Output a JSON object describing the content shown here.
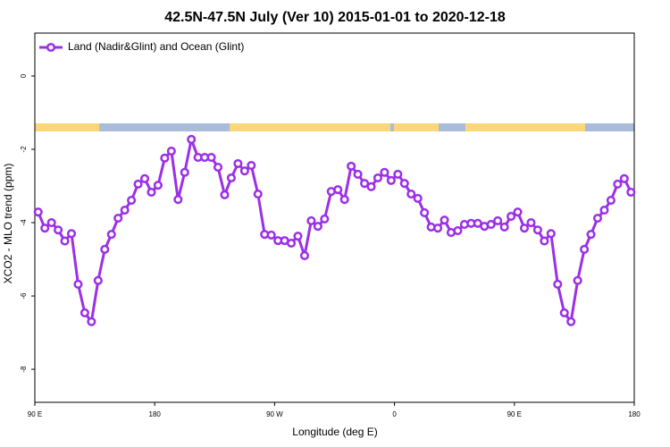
{
  "chart_data": {
    "type": "line",
    "title": "42.5N-47.5N July (Ver 10)   2015-01-01 to 2020-12-18",
    "x_label": "Longitude (deg E)",
    "y_label": "XCO2 - MLO trend (ppm)",
    "legend": "top-left",
    "xlim": [
      90,
      540
    ],
    "ylim": [
      -8.9,
      1.17
    ],
    "xticks": [
      {
        "value": 90,
        "label": "90 E"
      },
      180,
      {
        "value": 270,
        "label": "90 W"
      },
      {
        "value": 360,
        "label": "0"
      },
      {
        "value": 450,
        "label": "90 E"
      },
      {
        "value": 540,
        "label": "180"
      }
    ],
    "yticks": [
      0,
      -2,
      -4,
      -6,
      -8
    ],
    "x": [
      92.5,
      97.5,
      102.5,
      107.5,
      112.5,
      117.5,
      122.5,
      127.5,
      132.5,
      137.5,
      142.5,
      147.5,
      152.5,
      157.5,
      162.5,
      167.5,
      172.5,
      177.5,
      182.5,
      187.5,
      192.5,
      197.5,
      202.5,
      207.5,
      212.5,
      217.5,
      222.5,
      227.5,
      232.5,
      237.5,
      242.5,
      247.5,
      252.5,
      257.5,
      262.5,
      267.5,
      272.5,
      277.5,
      282.5,
      287.5,
      292.5,
      297.5,
      302.5,
      307.5,
      312.5,
      317.5,
      322.5,
      327.5,
      332.5,
      337.5,
      342.5,
      347.5,
      352.5,
      357.5,
      362.5,
      367.5,
      372.5,
      377.5,
      382.5,
      387.5,
      392.5,
      397.5,
      402.5,
      407.5,
      412.5,
      417.5,
      422.5,
      427.5,
      432.5,
      437.5,
      442.5,
      447.5,
      452.5,
      457.5,
      462.5,
      467.5,
      472.5,
      477.5,
      482.5,
      487.5,
      492.5,
      497.5,
      502.5,
      507.5,
      512.5,
      517.5,
      522.5,
      527.5,
      532.5,
      537.5
    ],
    "series": [
      {
        "name": "Land (Nadir&Glint) and Ocean (Glint)",
        "color": "#9b30e6",
        "values": [
          -3.71,
          -4.15,
          -4.0,
          -4.2,
          -4.5,
          -4.3,
          -5.68,
          -6.46,
          -6.7,
          -5.58,
          -4.73,
          -4.32,
          -3.88,
          -3.66,
          -3.39,
          -2.95,
          -2.8,
          -3.17,
          -2.98,
          -2.24,
          -2.05,
          -3.37,
          -2.63,
          -1.73,
          -2.22,
          -2.22,
          -2.22,
          -2.49,
          -3.24,
          -2.78,
          -2.39,
          -2.59,
          -2.44,
          -3.22,
          -4.32,
          -4.34,
          -4.49,
          -4.49,
          -4.56,
          -4.37,
          -4.9,
          -3.95,
          -4.1,
          -3.9,
          -3.15,
          -3.1,
          -3.37,
          -2.46,
          -2.68,
          -2.93,
          -3.02,
          -2.78,
          -2.63,
          -2.85,
          -2.68,
          -2.93,
          -3.22,
          -3.34,
          -3.73,
          -4.12,
          -4.15,
          -3.93,
          -4.27,
          -4.22,
          -4.05,
          -4.02,
          -4.02,
          -4.1,
          -4.05,
          -3.95,
          -4.12,
          -3.83,
          -3.71,
          -4.15,
          -4.0,
          -4.2,
          -4.5,
          -4.3,
          -5.68,
          -6.46,
          -6.7,
          -5.58,
          -4.73,
          -4.32,
          -3.88,
          -3.66,
          -3.39,
          -2.95,
          -2.8,
          -3.17
        ]
      }
    ]
  }
}
